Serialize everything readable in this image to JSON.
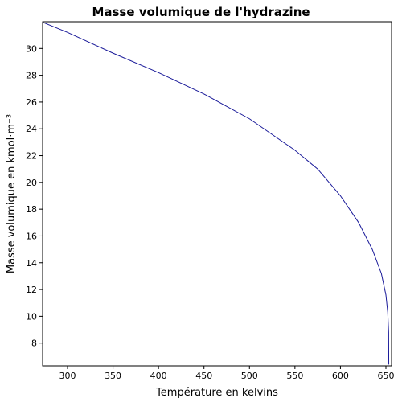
{
  "chart_data": {
    "type": "line",
    "title": "Masse volumique de l'hydrazine",
    "x_label": "Température en kelvins",
    "y_label": "Masse volumique en kmol·m⁻³",
    "x": [
      273,
      300,
      350,
      400,
      450,
      500,
      550,
      575,
      600,
      620,
      635,
      645,
      650,
      652,
      653,
      653.15
    ],
    "series": [
      {
        "name": "Masse volumique",
        "color": "#1a1a99",
        "values": [
          31.95,
          31.2,
          29.65,
          28.2,
          26.6,
          24.75,
          22.4,
          21.0,
          19.0,
          17.0,
          15.0,
          13.2,
          11.6,
          10.3,
          8.8,
          6.4
        ]
      }
    ],
    "xlim": [
      272.6,
      656.2
    ],
    "ylim": [
      6.3,
      32
    ],
    "xticks": [
      300,
      350,
      400,
      450,
      500,
      550,
      600,
      650
    ],
    "yticks": [
      8,
      10,
      12,
      14,
      16,
      18,
      20,
      22,
      24,
      26,
      28,
      30
    ],
    "grid": false
  }
}
